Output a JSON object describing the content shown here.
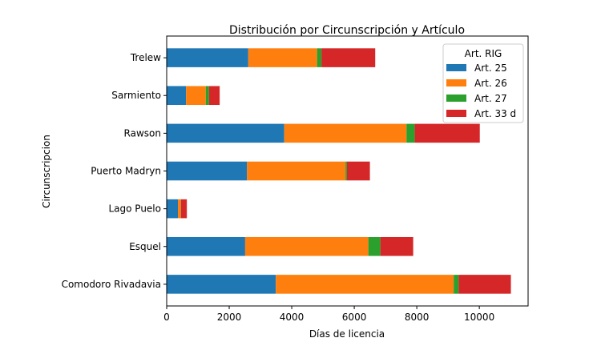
{
  "chart_data": {
    "type": "bar",
    "orientation": "horizontal",
    "stacked": true,
    "title": "Distribución por Circunscripción y Artículo",
    "xlabel": "Días de licencia",
    "ylabel": "Circunscripcion",
    "xlim": [
      0,
      11560
    ],
    "xticks": [
      "0",
      "2000",
      "4000",
      "6000",
      "8000",
      "10000"
    ],
    "grid": false,
    "legend": {
      "title": "Art. RIG",
      "placement": "top-right"
    },
    "categories": [
      "Comodoro Rivadavia",
      "Esquel",
      "Lago Puelo",
      "Puerto Madryn",
      "Rawson",
      "Sarmiento",
      "Trelew"
    ],
    "series": [
      {
        "name": "Art. 25",
        "color": "#1f77b4",
        "values": [
          3490,
          2510,
          360,
          2570,
          3760,
          620,
          2610
        ]
      },
      {
        "name": "Art. 26",
        "color": "#ff7f0e",
        "values": [
          5690,
          3940,
          85,
          3150,
          3910,
          630,
          2200
        ]
      },
      {
        "name": "Art. 27",
        "color": "#2ca02c",
        "values": [
          160,
          385,
          10,
          45,
          265,
          105,
          140
        ]
      },
      {
        "name": "Art. 33 d",
        "color": "#d62728",
        "values": [
          1670,
          1050,
          190,
          735,
          2080,
          340,
          1720
        ]
      }
    ]
  }
}
